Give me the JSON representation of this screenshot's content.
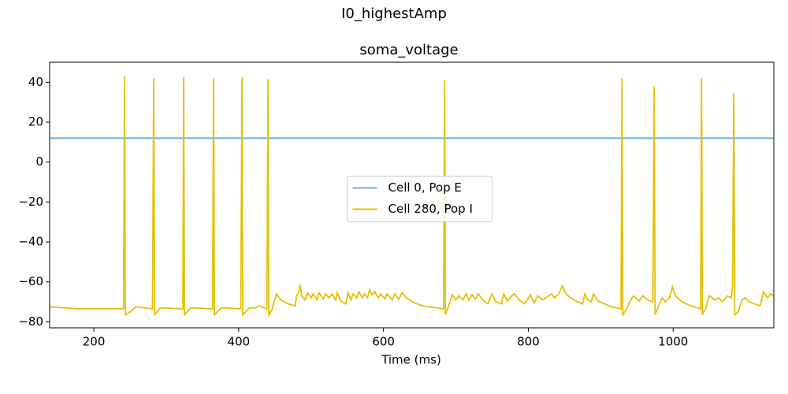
{
  "chart_data": {
    "type": "line",
    "suptitle": "I0_highestAmp",
    "title": "soma_voltage",
    "xlabel": "Time (ms)",
    "xlim": [
      139,
      1139
    ],
    "ylim": [
      -83,
      50
    ],
    "xticks": [
      200,
      400,
      600,
      800,
      1000
    ],
    "yticks": [
      {
        "value": -80,
        "label": "−80"
      },
      {
        "value": -60,
        "label": "−60"
      },
      {
        "value": -40,
        "label": "−40"
      },
      {
        "value": -20,
        "label": "−20"
      },
      0,
      20,
      40
    ],
    "legend": "center",
    "series": [
      {
        "name": "Cell 0, Pop E",
        "color": "#6baed6",
        "x": [
          139,
          1139
        ],
        "values": [
          12,
          12
        ]
      },
      {
        "name": "Cell 280, Pop I",
        "color": "#e6c000",
        "x": [
          139,
          180,
          241,
          242.4,
          243.5,
          250,
          258,
          270,
          281,
          282.7,
          284,
          292,
          323,
          324.1,
          325.2,
          334,
          364,
          365.4,
          366.5,
          376,
          403,
          404.6,
          405.7,
          415,
          424,
          428,
          439,
          440.5,
          441.6,
          446,
          449,
          452,
          458,
          468,
          478,
          480,
          483,
          485,
          487,
          492,
          495,
          500,
          503,
          508,
          511,
          517,
          520,
          525,
          529,
          534,
          536,
          541,
          548,
          551,
          555,
          558,
          563,
          566,
          571,
          574,
          578,
          581,
          584,
          588,
          593,
          596,
          602,
          605,
          612,
          616,
          621,
          626,
          632,
          640,
          650,
          660,
          675,
          683,
          684.4,
          685.5,
          690,
          695,
          700,
          704,
          710,
          714,
          718,
          722,
          727,
          731,
          737,
          744,
          750,
          755,
          763,
          766,
          771,
          777,
          781,
          787,
          795,
          803,
          808,
          813,
          820,
          832,
          836,
          842,
          847,
          852,
          862,
          875,
          878,
          882,
          887,
          890,
          896,
          905,
          915,
          928,
          929.3,
          930.4,
          935,
          940,
          945,
          953,
          958,
          965,
          972,
          973.9,
          975,
          980,
          985,
          989,
          995,
          999,
          1003,
          1012,
          1025,
          1038,
          1039.2,
          1040.3,
          1045,
          1050,
          1058,
          1063,
          1068,
          1075,
          1080,
          1082,
          1083.8,
          1085,
          1090,
          1095,
          1100,
          1105,
          1112,
          1120,
          1125,
          1130,
          1135,
          1139
        ],
        "values": [
          -72.5,
          -73.5,
          -73.5,
          43,
          -76.5,
          -75,
          -72.5,
          -73,
          -73.5,
          42,
          -76.5,
          -73,
          -73.5,
          42.5,
          -76.5,
          -73,
          -73.5,
          42,
          -76.5,
          -73,
          -73.5,
          42.5,
          -76.5,
          -73,
          -73,
          -72,
          -73.5,
          41.5,
          -76.5,
          -74,
          -70,
          -66,
          -69,
          -71,
          -72,
          -67,
          -65,
          -61.5,
          -67,
          -69,
          -65.5,
          -68,
          -66,
          -69,
          -65.5,
          -68.5,
          -66,
          -68,
          -66,
          -69,
          -65.5,
          -69.5,
          -71,
          -65.5,
          -69,
          -66,
          -68,
          -65,
          -68,
          -66,
          -68,
          -64,
          -66.5,
          -65,
          -68,
          -66,
          -68.5,
          -66,
          -69,
          -66,
          -68.5,
          -65.5,
          -68,
          -70,
          -71.5,
          -72.5,
          -73,
          -73.5,
          41,
          -76.5,
          -72,
          -66.5,
          -69,
          -67,
          -69,
          -66,
          -69,
          -66.5,
          -68.5,
          -66,
          -69,
          -71,
          -66,
          -70,
          -71,
          -66,
          -69.5,
          -67,
          -66,
          -69,
          -71,
          -66.5,
          -70.5,
          -67,
          -69,
          -66,
          -68,
          -66,
          -62,
          -66,
          -69,
          -71,
          -66,
          -69,
          -70,
          -66,
          -69.5,
          -71,
          -72.5,
          -73.5,
          42,
          -76.5,
          -74,
          -70,
          -67,
          -69.5,
          -67,
          -69,
          -70,
          38,
          -76.5,
          -72,
          -68,
          -70,
          -68,
          -62.5,
          -67,
          -70,
          -72,
          -73.5,
          42,
          -76.5,
          -73,
          -67,
          -69,
          -68,
          -70,
          -67,
          -68,
          -62,
          34.5,
          -76.5,
          -75,
          -69,
          -68,
          -70,
          -71,
          -72,
          -65,
          -68,
          -66,
          -67
        ]
      }
    ]
  }
}
